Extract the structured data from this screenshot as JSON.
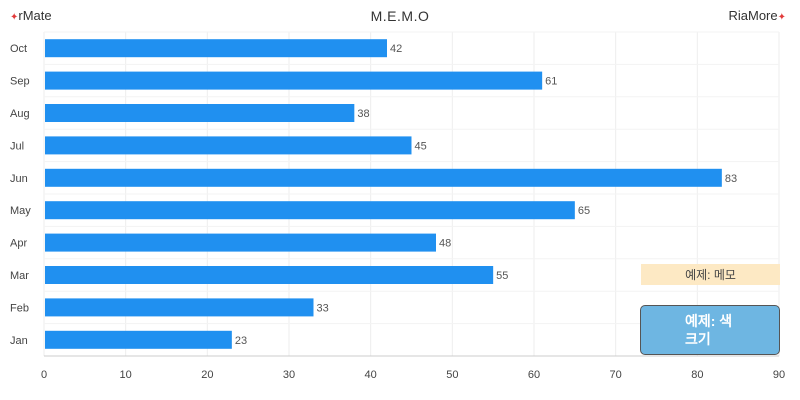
{
  "header": {
    "left_logo": "rMate",
    "right_logo": "RiaMore",
    "title": "M.E.M.O"
  },
  "memo_box": {
    "label": "예제: 메모"
  },
  "example_button": {
    "label": "예제: 색 크기"
  },
  "colors": {
    "bar": "#2090f0",
    "memo_bg": "#fde9c4",
    "button_bg": "#6eb6e2"
  },
  "chart_data": {
    "type": "bar",
    "orientation": "horizontal",
    "title": "M.E.M.O",
    "categories": [
      "Jan",
      "Feb",
      "Mar",
      "Apr",
      "May",
      "Jun",
      "Jul",
      "Aug",
      "Sep",
      "Oct"
    ],
    "values": [
      23,
      33,
      55,
      48,
      65,
      83,
      45,
      38,
      61,
      42
    ],
    "xlim": [
      0,
      90
    ],
    "xticks": [
      0,
      10,
      20,
      30,
      40,
      50,
      60,
      70,
      80,
      90
    ],
    "grid": true,
    "data_labels": true
  }
}
